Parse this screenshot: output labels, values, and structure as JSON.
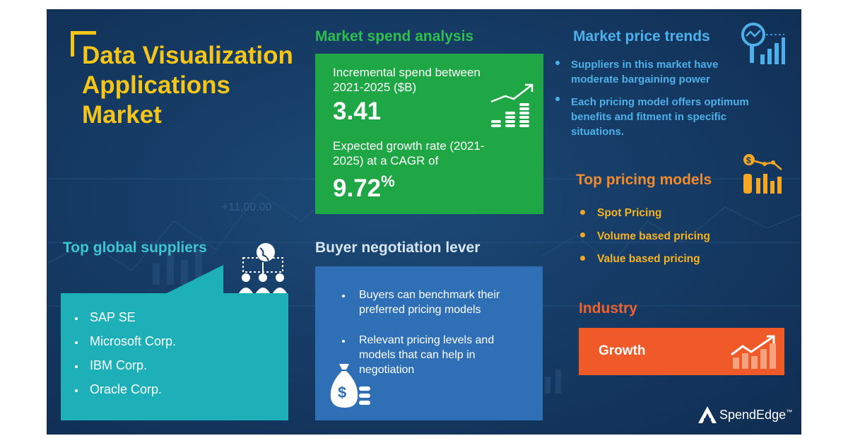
{
  "title": "Data Visualization Applications Market",
  "bg_watermark": "+11,00.00",
  "market_spend": {
    "heading": "Market spend analysis",
    "incremental_label": "Incremental spend between 2021-2025 ($B)",
    "incremental_value": "3.41",
    "growth_label": "Expected growth rate (2021-2025) at a CAGR of",
    "growth_value": "9.72",
    "growth_unit": "%"
  },
  "market_trends": {
    "heading": "Market price trends",
    "bullets": [
      "Suppliers in this market have moderate bargaining power",
      "Each pricing model offers optimum benefits and fitment in specific situations."
    ]
  },
  "pricing_models": {
    "heading": "Top pricing models",
    "items": [
      "Spot Pricing",
      "Volume based pricing",
      "Value based pricing"
    ]
  },
  "suppliers": {
    "heading": "Top global suppliers",
    "items": [
      "SAP SE",
      "Microsoft Corp.",
      "IBM Corp.",
      "Oracle Corp."
    ]
  },
  "buyer": {
    "heading": "Buyer negotiation lever",
    "bullets": [
      "Buyers can benchmark their preferred pricing models",
      "Relevant pricing levels and models that can help in negotiation"
    ]
  },
  "industry": {
    "heading": "Industry",
    "label": "Growth"
  },
  "brand": {
    "name": "SpendEdge",
    "trademark": "™"
  },
  "colors": {
    "background": "#163c66",
    "title": "#f5c518",
    "spend_box": "#1fa745",
    "suppliers_box": "#1db0b8",
    "buyer_box": "#2f6fb6",
    "industry_box": "#f05a28",
    "trend_text": "#4db0ea",
    "pricing_text": "#f5b323"
  },
  "icons": [
    "rising-coins-icon",
    "globe-network-icon",
    "magnifier-chart-icon",
    "price-chart-icon",
    "money-bag-icon",
    "growth-chart-icon",
    "spendedge-logo-icon"
  ]
}
